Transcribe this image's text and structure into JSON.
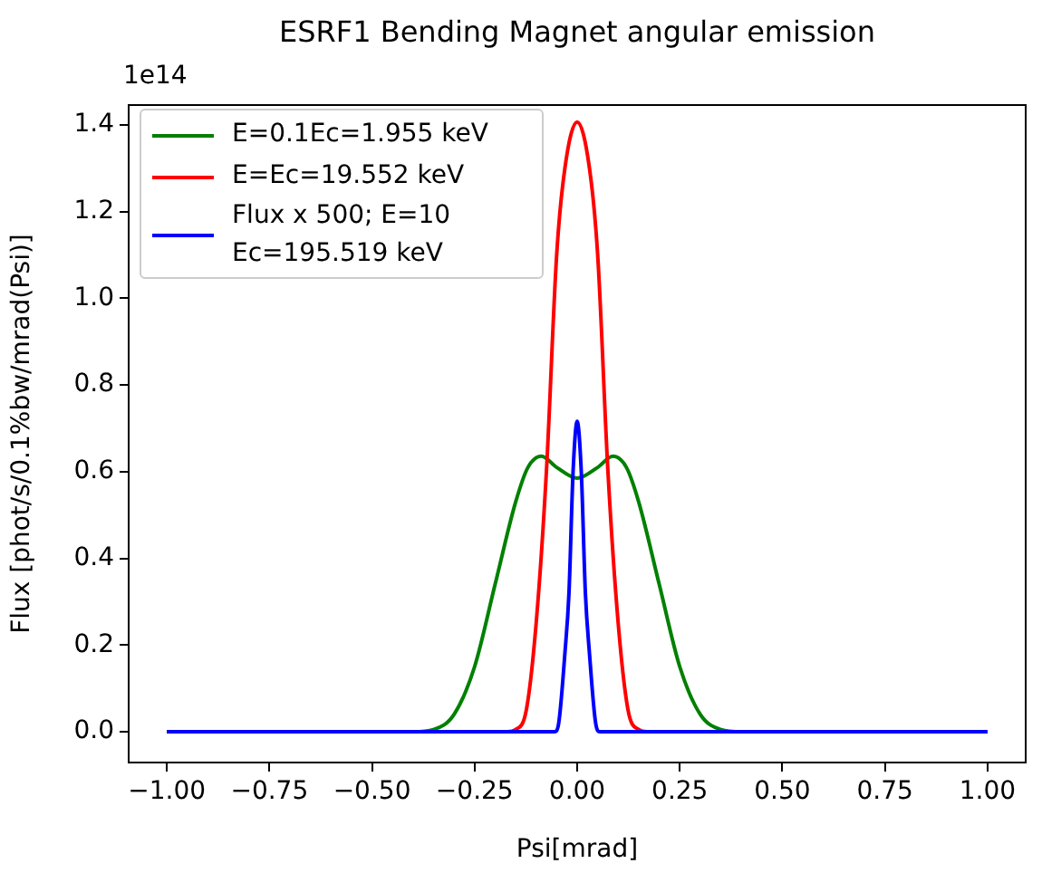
{
  "chart_data": {
    "type": "line",
    "title": "ESRF1 Bending Magnet angular emission",
    "xlabel": "Psi[mrad]",
    "ylabel": "Flux [phot/s/0.1%bw/mrad(Psi)]",
    "annotations": [
      "1e14"
    ],
    "xlim": [
      -1.093,
      1.093
    ],
    "ylim": [
      -0.071,
      1.446
    ],
    "xticks": [
      {
        "value": -1,
        "label": "−1.00"
      },
      {
        "value": -0.75,
        "label": "−0.75"
      },
      {
        "value": -0.5,
        "label": "−0.50"
      },
      {
        "value": -0.25,
        "label": "−0.25"
      },
      {
        "value": 0,
        "label": "0.00"
      },
      {
        "value": 0.25,
        "label": "0.25"
      },
      {
        "value": 0.5,
        "label": "0.50"
      },
      {
        "value": 0.75,
        "label": "0.75"
      },
      {
        "value": 1,
        "label": "1.00"
      }
    ],
    "yticks": [
      {
        "value": 0,
        "label": "0.0"
      },
      {
        "value": 0.2,
        "label": "0.2"
      },
      {
        "value": 0.4,
        "label": "0.4"
      },
      {
        "value": 0.6,
        "label": "0.6"
      },
      {
        "value": 0.8,
        "label": "0.8"
      },
      {
        "value": 1,
        "label": "1.0"
      },
      {
        "value": 1.2,
        "label": "1.2"
      },
      {
        "value": 1.4,
        "label": "1.4"
      }
    ],
    "grid": false,
    "legend": "top left",
    "marker": "none",
    "line_style": "solid",
    "series": [
      {
        "name": "E=0.1Ec=1.955 keV",
        "color": "#008000",
        "x": [
          -1,
          -0.4,
          -0.35,
          -0.3,
          -0.25,
          -0.2,
          -0.15,
          -0.12,
          -0.087,
          -0.05,
          0,
          0.05,
          0.087,
          0.12,
          0.15,
          0.2,
          0.25,
          0.3,
          0.35,
          0.4,
          1
        ],
        "values": [
          0,
          0,
          0.005,
          0.04,
          0.15,
          0.34,
          0.53,
          0.61,
          0.636,
          0.61,
          0.585,
          0.61,
          0.636,
          0.61,
          0.53,
          0.34,
          0.15,
          0.04,
          0.005,
          0,
          0
        ]
      },
      {
        "name": "E=Ec=19.552 keV",
        "color": "#ff0000",
        "x": [
          -1,
          -0.17,
          -0.15,
          -0.124,
          -0.1,
          -0.075,
          -0.05,
          -0.03,
          0,
          0.03,
          0.05,
          0.075,
          0.1,
          0.124,
          0.15,
          0.17,
          1
        ],
        "values": [
          0,
          0,
          0.005,
          0.05,
          0.25,
          0.6,
          1.1,
          1.3,
          1.407,
          1.3,
          1.1,
          0.6,
          0.25,
          0.05,
          0.005,
          0,
          0
        ]
      },
      {
        "name": "Flux x 500; E=10 Ec=195.519 keV",
        "color": "#0000ff",
        "x": [
          -1,
          -0.055,
          -0.045,
          -0.03,
          -0.02,
          -0.01,
          0,
          0.01,
          0.02,
          0.03,
          0.045,
          0.055,
          1
        ],
        "values": [
          0,
          0,
          0.02,
          0.18,
          0.32,
          0.6,
          0.716,
          0.6,
          0.32,
          0.18,
          0.02,
          0,
          0
        ]
      }
    ]
  }
}
